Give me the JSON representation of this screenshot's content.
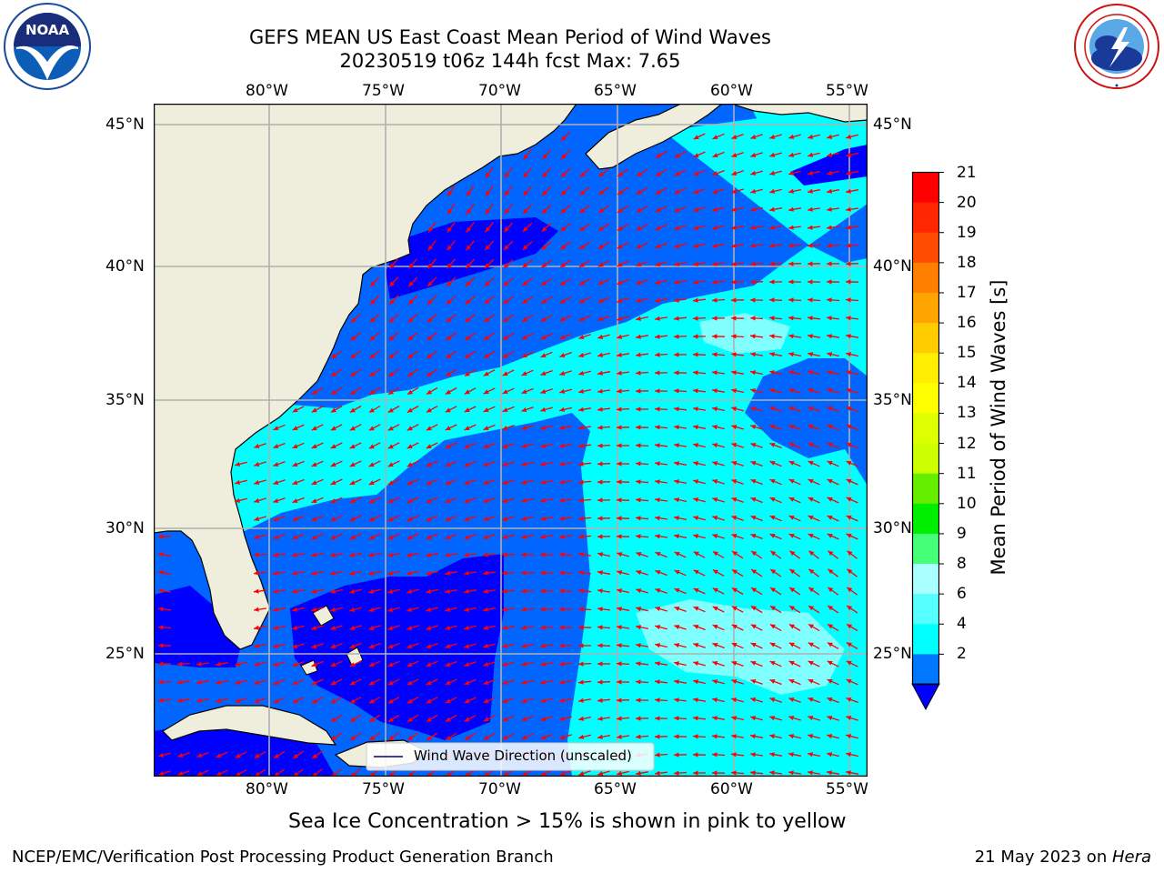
{
  "header": {
    "title_line1": "GEFS MEAN US East Coast Mean Period of Wind Waves",
    "title_line2": "20230519 t06z 144h fcst   Max: 7.65"
  },
  "logos": {
    "left": {
      "name": "NOAA",
      "ring_text": "NATIONAL OCEANIC AND ATMOSPHERIC ADMINISTRATION · U.S. DEPARTMENT OF COMMERCE"
    },
    "right": {
      "name": "NATIONAL WEATHER SERVICE"
    }
  },
  "map": {
    "lon_ticks": [
      "80°W",
      "75°W",
      "70°W",
      "65°W",
      "60°W",
      "55°W"
    ],
    "lat_ticks": [
      "45°N",
      "40°N",
      "35°N",
      "30°N",
      "25°N"
    ],
    "legend_label": "Wind Wave Direction (unscaled)",
    "gridlines": true,
    "colors": {
      "land": "#efeedc",
      "band_2_4": "#0066ff",
      "band_4_6": "#00ffff",
      "band_6_8": "#80ffff",
      "below_2": "#0000ff",
      "arrows": "#ff0000",
      "grid": "#b0b0b0"
    }
  },
  "colorbar": {
    "label": "Mean Period of Wind Waves [s]",
    "ticks": [
      "21",
      "20",
      "19",
      "18",
      "17",
      "16",
      "15",
      "14",
      "13",
      "12",
      "11",
      "10",
      "9",
      "8",
      "6",
      "4",
      "2"
    ],
    "colors": [
      "#ff0000",
      "#ff2600",
      "#ff4c00",
      "#ff7f00",
      "#ffa500",
      "#ffcc00",
      "#ffee00",
      "#ffff00",
      "#ddff00",
      "#ccff00",
      "#66ee00",
      "#00ee00",
      "#44ff77",
      "#aaffff",
      "#55ffff",
      "#00ffff",
      "#0077ff"
    ],
    "extend_color": "#0000ff"
  },
  "footer": {
    "caption": "Sea Ice Concentration > 15% is shown in pink to yellow",
    "left": "NCEP/EMC/Verification Post Processing Product Generation Branch",
    "right_date": "21 May 2023 on ",
    "right_host": "Hera"
  }
}
